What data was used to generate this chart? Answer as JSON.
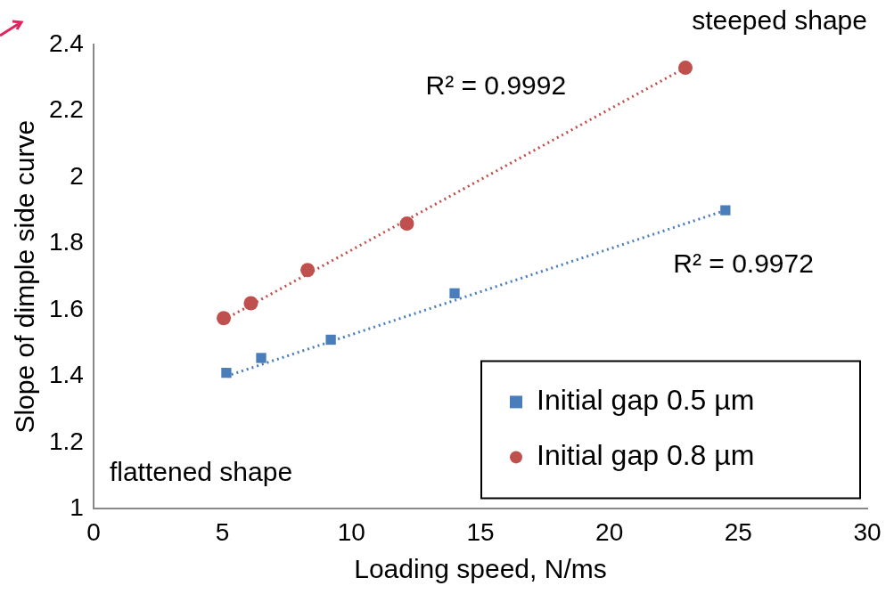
{
  "chart_data": {
    "type": "scatter",
    "xlabel": "Loading speed, N/ms",
    "ylabel": "Slope of dimple side curve",
    "xlim": [
      0,
      30
    ],
    "xticks": [
      0,
      5,
      10,
      15,
      20,
      25,
      30
    ],
    "ylim": [
      1,
      2.4
    ],
    "yticks": [
      1,
      1.2,
      1.4,
      1.6,
      1.8,
      2,
      2.2,
      2.4
    ],
    "grid": false,
    "legend": "bottom right",
    "series": [
      {
        "name": "Initial gap 0.5 µm",
        "color": "#4a7ebb",
        "marker": "square",
        "x": [
          5.15,
          6.5,
          9.2,
          14.0,
          24.5
        ],
        "values": [
          1.41,
          1.455,
          1.51,
          1.65,
          1.9
        ]
      },
      {
        "name": "Initial gap 0.8 µm",
        "color": "#c0504d",
        "marker": "circle",
        "x": [
          5.05,
          6.1,
          8.3,
          12.15,
          22.95
        ],
        "values": [
          1.575,
          1.62,
          1.72,
          1.86,
          2.33
        ]
      },
      {
        "type": "line",
        "color": "#4a7ebb",
        "line_style": "dotted",
        "marker": "none",
        "x": [
          5.15,
          24.5
        ],
        "values": [
          1.4,
          1.9
        ]
      },
      {
        "type": "line",
        "color": "#c0504d",
        "line_style": "dotted",
        "marker": "none",
        "x": [
          5.05,
          22.95
        ],
        "values": [
          1.57,
          2.33
        ]
      }
    ],
    "annotations": [
      "steeped shape",
      "R² = 0.9992",
      "R² = 0.9972",
      "flattened shape"
    ]
  }
}
